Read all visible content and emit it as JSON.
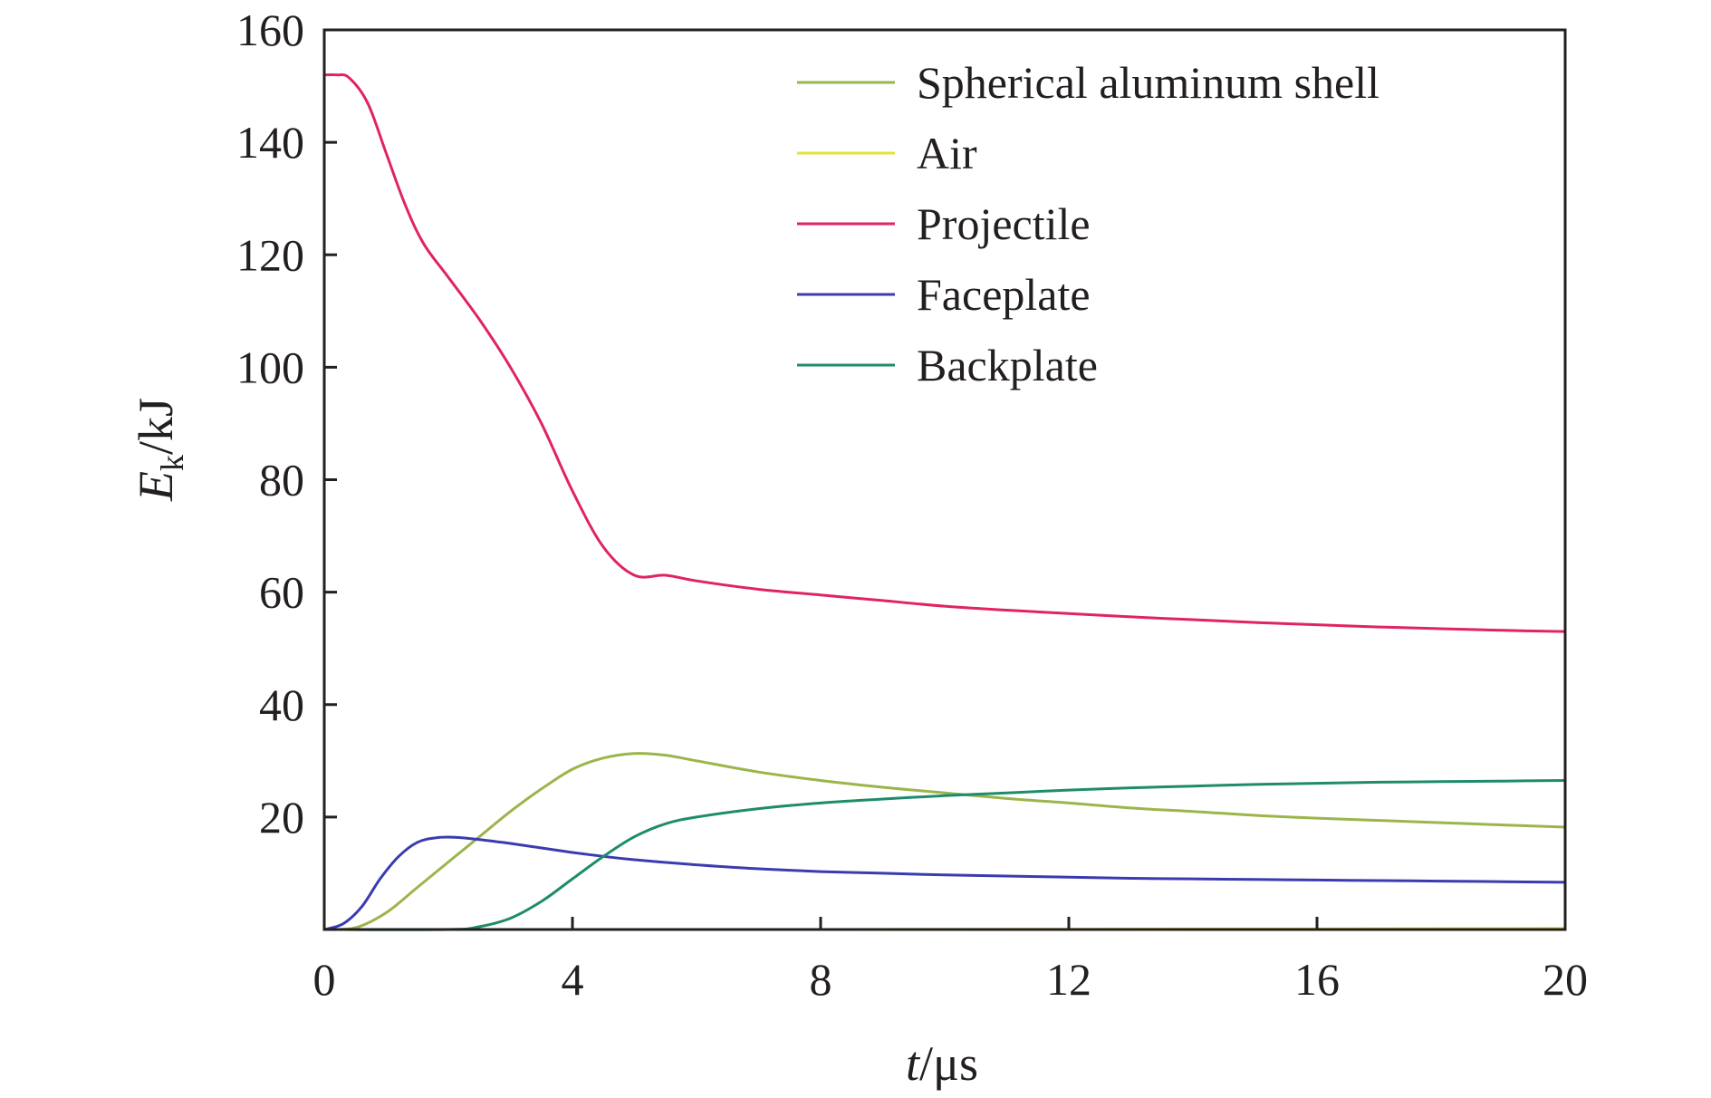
{
  "chart_data": {
    "type": "line",
    "xlabel": {
      "var": "t",
      "unit": "/μs"
    },
    "ylabel": {
      "var": "E",
      "sub": "k",
      "unit": "/kJ"
    },
    "xlim": [
      0,
      20
    ],
    "ylim": [
      0,
      160
    ],
    "xticks": [
      0,
      4,
      8,
      12,
      16,
      20
    ],
    "yticks": [
      20,
      40,
      60,
      80,
      100,
      120,
      140,
      160
    ],
    "legend_position": "top-right",
    "grid": false,
    "series": [
      {
        "name": "Spherical aluminum shell",
        "color": "#9bb54a",
        "points": [
          [
            0,
            0
          ],
          [
            0.5,
            0.3
          ],
          [
            1,
            3
          ],
          [
            1.5,
            7.5
          ],
          [
            2,
            12
          ],
          [
            2.5,
            16.5
          ],
          [
            3,
            21
          ],
          [
            3.5,
            25
          ],
          [
            4,
            28.5
          ],
          [
            4.5,
            30.5
          ],
          [
            5,
            31.3
          ],
          [
            5.5,
            31
          ],
          [
            6,
            30
          ],
          [
            7,
            28
          ],
          [
            8,
            26.5
          ],
          [
            9,
            25.3
          ],
          [
            10,
            24.3
          ],
          [
            11,
            23.3
          ],
          [
            12,
            22.5
          ],
          [
            13,
            21.6
          ],
          [
            14,
            21
          ],
          [
            15,
            20.3
          ],
          [
            16,
            19.8
          ],
          [
            17,
            19.4
          ],
          [
            18,
            19
          ],
          [
            19,
            18.6
          ],
          [
            20,
            18.2
          ]
        ]
      },
      {
        "name": "Air",
        "color": "#e3e33a",
        "points": [
          [
            0,
            0
          ],
          [
            4,
            0
          ],
          [
            8,
            0
          ],
          [
            12,
            0.05
          ],
          [
            16,
            0.1
          ],
          [
            20,
            0.2
          ]
        ]
      },
      {
        "name": "Projectile",
        "color": "#e0245e",
        "points": [
          [
            0,
            152
          ],
          [
            0.2,
            152
          ],
          [
            0.4,
            151.5
          ],
          [
            0.7,
            147
          ],
          [
            1,
            138
          ],
          [
            1.3,
            129
          ],
          [
            1.6,
            122
          ],
          [
            2,
            116
          ],
          [
            2.5,
            108.5
          ],
          [
            3,
            100
          ],
          [
            3.5,
            90
          ],
          [
            4,
            78
          ],
          [
            4.5,
            68
          ],
          [
            5,
            63
          ],
          [
            5.5,
            63
          ],
          [
            6,
            62
          ],
          [
            7,
            60.5
          ],
          [
            8,
            59.5
          ],
          [
            9,
            58.5
          ],
          [
            10,
            57.5
          ],
          [
            11,
            56.8
          ],
          [
            12,
            56.2
          ],
          [
            13,
            55.6
          ],
          [
            14,
            55.1
          ],
          [
            15,
            54.6
          ],
          [
            16,
            54.2
          ],
          [
            17,
            53.8
          ],
          [
            18,
            53.5
          ],
          [
            19,
            53.2
          ],
          [
            20,
            53
          ]
        ]
      },
      {
        "name": "Faceplate",
        "color": "#3b3bb0",
        "points": [
          [
            0,
            0
          ],
          [
            0.3,
            1
          ],
          [
            0.6,
            4
          ],
          [
            0.9,
            9
          ],
          [
            1.2,
            13
          ],
          [
            1.5,
            15.5
          ],
          [
            1.8,
            16.3
          ],
          [
            2.1,
            16.4
          ],
          [
            2.5,
            16
          ],
          [
            3,
            15.3
          ],
          [
            3.5,
            14.5
          ],
          [
            4,
            13.7
          ],
          [
            4.5,
            13
          ],
          [
            5,
            12.4
          ],
          [
            6,
            11.5
          ],
          [
            7,
            10.8
          ],
          [
            8,
            10.3
          ],
          [
            9,
            10
          ],
          [
            10,
            9.7
          ],
          [
            11,
            9.5
          ],
          [
            12,
            9.3
          ],
          [
            13,
            9.1
          ],
          [
            14,
            9
          ],
          [
            15,
            8.9
          ],
          [
            16,
            8.8
          ],
          [
            17,
            8.7
          ],
          [
            18,
            8.6
          ],
          [
            19,
            8.5
          ],
          [
            20,
            8.4
          ]
        ]
      },
      {
        "name": "Backplate",
        "color": "#1e8c6c",
        "points": [
          [
            0,
            0
          ],
          [
            2,
            0
          ],
          [
            2.5,
            0.5
          ],
          [
            3,
            2
          ],
          [
            3.5,
            5
          ],
          [
            4,
            9
          ],
          [
            4.5,
            13
          ],
          [
            5,
            16.5
          ],
          [
            5.5,
            18.8
          ],
          [
            6,
            20
          ],
          [
            7,
            21.5
          ],
          [
            8,
            22.5
          ],
          [
            9,
            23.2
          ],
          [
            10,
            23.8
          ],
          [
            11,
            24.3
          ],
          [
            12,
            24.8
          ],
          [
            13,
            25.2
          ],
          [
            14,
            25.5
          ],
          [
            15,
            25.8
          ],
          [
            16,
            26
          ],
          [
            17,
            26.2
          ],
          [
            18,
            26.3
          ],
          [
            19,
            26.4
          ],
          [
            20,
            26.5
          ]
        ]
      }
    ]
  }
}
